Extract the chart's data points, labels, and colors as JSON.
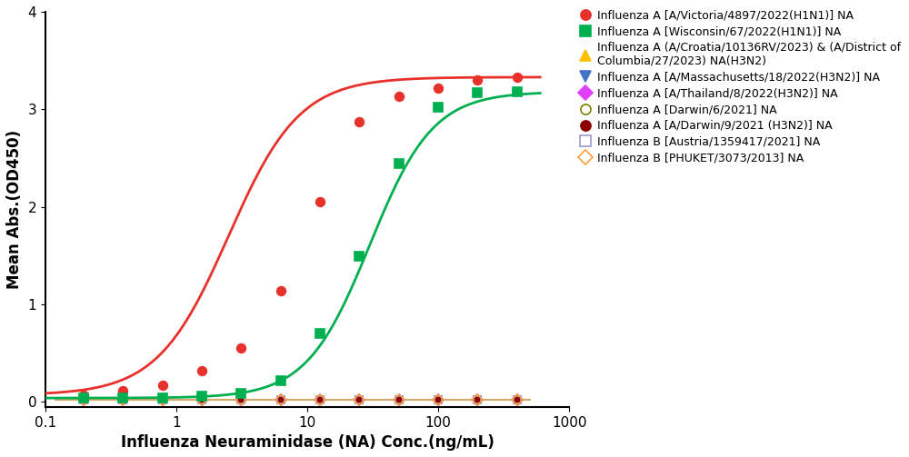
{
  "title": "",
  "xlabel": "Influenza Neuraminidase (NA) Conc.(ng/mL)",
  "ylabel": "Mean Abs.(OD450)",
  "xlim": [
    0.1,
    1000
  ],
  "ylim": [
    -0.05,
    4
  ],
  "yticks": [
    0,
    1,
    2,
    3,
    4
  ],
  "series": [
    {
      "label": "Influenza A [A/Victoria/4897/2022(H1N1)] NA",
      "color": "#e8312a",
      "marker": "o",
      "filled": true,
      "bottom": 0.07,
      "top": 3.33,
      "ec50": 2.5,
      "hill": 1.6,
      "x_data": [
        0.195,
        0.391,
        0.781,
        1.563,
        3.125,
        6.25,
        12.5,
        25,
        50,
        100,
        200,
        400
      ],
      "y_data": [
        0.07,
        0.12,
        0.17,
        0.32,
        0.55,
        1.14,
        2.05,
        2.87,
        3.13,
        3.22,
        3.3,
        3.33
      ],
      "has_curve": true
    },
    {
      "label": "Influenza A [Wisconsin/67/2022(H1N1)] NA",
      "color": "#00b050",
      "marker": "s",
      "filled": true,
      "bottom": 0.04,
      "top": 3.18,
      "ec50": 30.0,
      "hill": 1.8,
      "x_data": [
        0.195,
        0.391,
        0.781,
        1.563,
        3.125,
        6.25,
        12.5,
        25,
        50,
        100,
        200,
        400
      ],
      "y_data": [
        0.04,
        0.04,
        0.04,
        0.06,
        0.09,
        0.22,
        0.7,
        1.49,
        2.44,
        3.02,
        3.17,
        3.18
      ],
      "has_curve": true
    },
    {
      "label": "Influenza A (A/Croatia/10136RV/2023) & (A/District of\nColumbia/27/2023) NA(H3N2)",
      "color": "#ffc000",
      "marker": "^",
      "filled": true,
      "x_data": [
        0.195,
        0.391,
        0.781,
        1.563,
        3.125,
        6.25,
        12.5,
        25,
        50,
        100,
        200,
        400
      ],
      "y_data": [
        0.02,
        0.02,
        0.02,
        0.02,
        0.02,
        0.02,
        0.02,
        0.02,
        0.02,
        0.02,
        0.02,
        0.02
      ],
      "has_curve": false,
      "line_color": "#c8a060"
    },
    {
      "label": "Influenza A [A/Massachusetts/18/2022(H3N2)] NA",
      "color": "#4472c4",
      "marker": "v",
      "filled": true,
      "x_data": [
        0.195,
        0.391,
        0.781,
        1.563,
        3.125,
        6.25,
        12.5,
        25,
        50,
        100,
        200,
        400
      ],
      "y_data": [
        0.02,
        0.02,
        0.02,
        0.02,
        0.02,
        0.02,
        0.02,
        0.02,
        0.02,
        0.02,
        0.02,
        0.02
      ],
      "has_curve": false
    },
    {
      "label": "Influenza A [A/Thailand/8/2022(H3N2)] NA",
      "color": "#e040fb",
      "marker": "D",
      "filled": true,
      "x_data": [
        0.195,
        0.391,
        0.781,
        1.563,
        3.125,
        6.25,
        12.5,
        25,
        50,
        100,
        200,
        400
      ],
      "y_data": [
        0.02,
        0.02,
        0.02,
        0.02,
        0.02,
        0.02,
        0.02,
        0.02,
        0.02,
        0.02,
        0.02,
        0.02
      ],
      "has_curve": false
    },
    {
      "label": "Influenza A [Darwin/6/2021] NA",
      "color": "#808000",
      "marker": "o",
      "filled": false,
      "x_data": [
        0.195,
        0.391,
        0.781,
        1.563,
        3.125,
        6.25,
        12.5,
        25,
        50,
        100,
        200,
        400
      ],
      "y_data": [
        0.02,
        0.02,
        0.02,
        0.02,
        0.02,
        0.02,
        0.02,
        0.02,
        0.02,
        0.02,
        0.02,
        0.02
      ],
      "has_curve": false
    },
    {
      "label": "Influenza A [A/Darwin/9/2021 (H3N2)] NA",
      "color": "#8b0000",
      "marker": "o",
      "filled": true,
      "x_data": [
        0.195,
        0.391,
        0.781,
        1.563,
        3.125,
        6.25,
        12.5,
        25,
        50,
        100,
        200,
        400
      ],
      "y_data": [
        0.02,
        0.02,
        0.02,
        0.02,
        0.02,
        0.02,
        0.02,
        0.02,
        0.02,
        0.02,
        0.02,
        0.02
      ],
      "has_curve": false
    },
    {
      "label": "Influenza B [Austria/1359417/2021] NA",
      "color": "#9999cc",
      "marker": "s",
      "filled": false,
      "x_data": [
        0.195,
        0.391,
        0.781,
        1.563,
        3.125,
        6.25,
        12.5,
        25,
        50,
        100,
        200,
        400
      ],
      "y_data": [
        0.02,
        0.02,
        0.02,
        0.02,
        0.02,
        0.02,
        0.02,
        0.02,
        0.02,
        0.02,
        0.02,
        0.02
      ],
      "has_curve": false
    },
    {
      "label": "Influenza B [PHUKET/3073/2013] NA",
      "color": "#ffa040",
      "marker": "D",
      "filled": false,
      "x_data": [
        0.195,
        0.391,
        0.781,
        1.563,
        3.125,
        6.25,
        12.5,
        25,
        50,
        100,
        200,
        400
      ],
      "y_data": [
        0.02,
        0.02,
        0.02,
        0.02,
        0.02,
        0.02,
        0.02,
        0.02,
        0.02,
        0.02,
        0.02,
        0.02
      ],
      "has_curve": false
    }
  ],
  "flat_line_color": "#d4a96a",
  "legend_entries": [
    {
      "marker": "o",
      "color": "#e8312a",
      "filled": true,
      "label": "Influenza A [A/Victoria/4897/2022(H1N1)] NA"
    },
    {
      "marker": "s",
      "color": "#00b050",
      "filled": true,
      "label": "Influenza A [Wisconsin/67/2022(H1N1)] NA"
    },
    {
      "marker": "^",
      "color": "#ffc000",
      "filled": true,
      "label": "Influenza A (A/Croatia/10136RV/2023) & (A/District of\nColumbia/27/2023) NA(H3N2)"
    },
    {
      "marker": "v",
      "color": "#4472c4",
      "filled": true,
      "label": "Influenza A [A/Massachusetts/18/2022(H3N2)] NA"
    },
    {
      "marker": "D",
      "color": "#e040fb",
      "filled": true,
      "label": "Influenza A [A/Thailand/8/2022(H3N2)] NA"
    },
    {
      "marker": "o",
      "color": "#808000",
      "filled": false,
      "label": "Influenza A [Darwin/6/2021] NA"
    },
    {
      "marker": "o",
      "color": "#8b0000",
      "filled": true,
      "label": "Influenza A [A/Darwin/9/2021 (H3N2)] NA"
    },
    {
      "marker": "s",
      "color": "#9999cc",
      "filled": false,
      "label": "Influenza B [Austria/1359417/2021] NA"
    },
    {
      "marker": "D",
      "color": "#ffa040",
      "filled": false,
      "label": "Influenza B [PHUKET/3073/2013] NA"
    }
  ]
}
